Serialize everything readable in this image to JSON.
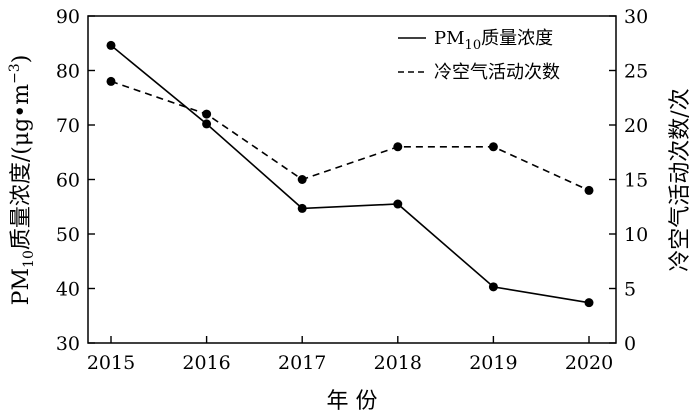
{
  "chart_data": {
    "type": "line",
    "x": [
      2015,
      2016,
      2017,
      2018,
      2019,
      2020
    ],
    "xlabel": "年 份",
    "ylabel_left": "PM10质量浓度/(μg•m−3)",
    "ylabel_right": "冷空气活动次数/次",
    "ylim_left": [
      30,
      90
    ],
    "ylim_right": [
      0,
      30
    ],
    "yticks_left": [
      30,
      40,
      50,
      60,
      70,
      80,
      90
    ],
    "yticks_right": [
      0,
      5,
      10,
      15,
      20,
      25,
      30
    ],
    "grid": false,
    "legend": "top-right",
    "series": [
      {
        "name": "PM10质量浓度",
        "axis": "left",
        "style": "solid",
        "values": [
          84.6,
          70.2,
          54.7,
          55.5,
          40.3,
          37.4
        ]
      },
      {
        "name": "冷空气活动次数",
        "axis": "right",
        "style": "dashed",
        "values": [
          24,
          21,
          15,
          18,
          18,
          14
        ]
      }
    ]
  }
}
